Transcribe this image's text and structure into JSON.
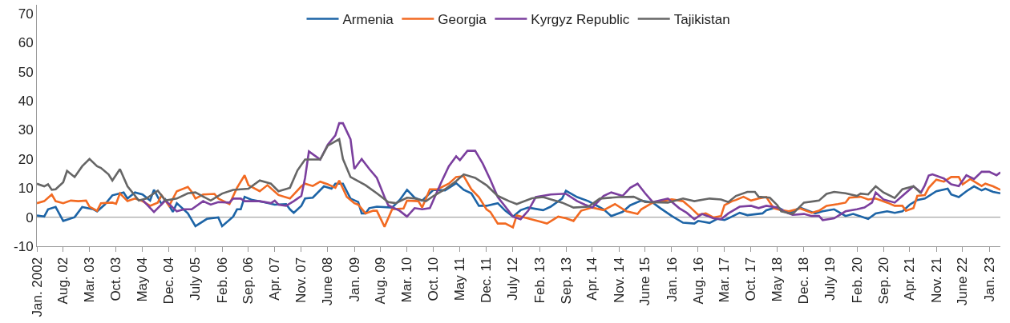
{
  "chart_data": {
    "type": "line",
    "legend": "top",
    "marker": "none",
    "line_style": "solid",
    "grid": false,
    "xlim": [
      "2002-01",
      "2023-04"
    ],
    "xticks": [
      {
        "value": "2002-01",
        "label": "Jan. 2002"
      },
      {
        "value": "2002-08",
        "label": "Aug. 02"
      },
      {
        "value": "2003-03",
        "label": "Mar. 03"
      },
      {
        "value": "2003-10",
        "label": "Oct. 03"
      },
      {
        "value": "2004-05",
        "label": "May 04"
      },
      {
        "value": "2004-12",
        "label": "Dec. 04"
      },
      {
        "value": "2005-07",
        "label": "July 05"
      },
      {
        "value": "2006-02",
        "label": "Feb. 06"
      },
      {
        "value": "2006-09",
        "label": "Sep. 06"
      },
      {
        "value": "2007-04",
        "label": "Apr. 07"
      },
      {
        "value": "2007-11",
        "label": "Nov. 07"
      },
      {
        "value": "2008-06",
        "label": "June 08"
      },
      {
        "value": "2009-01",
        "label": "Jan. 09"
      },
      {
        "value": "2009-08",
        "label": "Aug. 09"
      },
      {
        "value": "2010-03",
        "label": "Mar. 10"
      },
      {
        "value": "2010-10",
        "label": "Oct. 10"
      },
      {
        "value": "2011-05",
        "label": "May 11"
      },
      {
        "value": "2011-12",
        "label": "Dec. 11"
      },
      {
        "value": "2012-07",
        "label": "July 12"
      },
      {
        "value": "2013-02",
        "label": "Feb. 13"
      },
      {
        "value": "2013-09",
        "label": "Sep. 13"
      },
      {
        "value": "2014-04",
        "label": "Apr. 14"
      },
      {
        "value": "2014-11",
        "label": "Nov. 14"
      },
      {
        "value": "2015-06",
        "label": "June 15"
      },
      {
        "value": "2016-01",
        "label": "Jan. 16"
      },
      {
        "value": "2016-08",
        "label": "Aug. 16"
      },
      {
        "value": "2017-03",
        "label": "Mar. 17"
      },
      {
        "value": "2017-10",
        "label": "Oct. 17"
      },
      {
        "value": "2018-05",
        "label": "May 18"
      },
      {
        "value": "2018-12",
        "label": "Dec. 18"
      },
      {
        "value": "2019-07",
        "label": "July 19"
      },
      {
        "value": "2020-02",
        "label": "Feb. 20"
      },
      {
        "value": "2020-09",
        "label": "Sep. 20"
      },
      {
        "value": "2021-04",
        "label": "Apr. 21"
      },
      {
        "value": "2021-11",
        "label": "Nov. 21"
      },
      {
        "value": "2022-06",
        "label": "June 22"
      },
      {
        "value": "2023-01",
        "label": "Jan. 23"
      }
    ],
    "ylim": [
      -10,
      73
    ],
    "yticks": [
      -10,
      0,
      10,
      20,
      30,
      40,
      50,
      60,
      70
    ],
    "ref_lines": [
      {
        "axis": "y",
        "value": 0,
        "color": "#a6a6a6"
      }
    ],
    "series": [
      {
        "name": "Armenia",
        "color": "#1d64a6",
        "x": [
          "2002-01",
          "2002-03",
          "2002-04",
          "2002-06",
          "2002-08",
          "2002-11",
          "2003-01",
          "2003-04",
          "2003-05",
          "2003-07",
          "2003-09",
          "2003-12",
          "2004-01",
          "2004-03",
          "2004-05",
          "2004-07",
          "2004-08",
          "2004-10",
          "2004-11",
          "2005-01",
          "2005-02",
          "2005-05",
          "2005-07",
          "2005-10",
          "2006-01",
          "2006-02",
          "2006-05",
          "2006-06",
          "2006-07",
          "2006-08",
          "2006-10",
          "2007-01",
          "2007-04",
          "2007-07",
          "2007-08",
          "2007-09",
          "2007-11",
          "2007-12",
          "2008-02",
          "2008-05",
          "2008-07",
          "2008-08",
          "2008-10",
          "2008-12",
          "2009-02",
          "2009-03",
          "2009-04",
          "2009-05",
          "2009-07",
          "2009-11",
          "2010-01",
          "2010-03",
          "2010-05",
          "2010-07",
          "2010-10",
          "2011-01",
          "2011-04",
          "2011-06",
          "2011-08",
          "2011-10",
          "2011-12",
          "2012-03",
          "2012-05",
          "2012-07",
          "2012-09",
          "2012-11",
          "2013-03",
          "2013-05",
          "2013-08",
          "2013-09",
          "2013-12",
          "2014-03",
          "2014-05",
          "2014-07",
          "2014-09",
          "2014-12",
          "2015-02",
          "2015-05",
          "2015-08",
          "2015-10",
          "2016-01",
          "2016-04",
          "2016-07",
          "2016-08",
          "2016-11",
          "2017-01",
          "2017-03",
          "2017-04",
          "2017-07",
          "2017-09",
          "2018-01",
          "2018-02",
          "2018-05",
          "2018-08",
          "2018-11",
          "2019-03",
          "2019-05",
          "2019-08",
          "2019-11",
          "2020-01",
          "2020-05",
          "2020-07",
          "2020-10",
          "2020-12",
          "2021-02",
          "2021-04",
          "2021-06",
          "2021-08",
          "2021-11",
          "2022-02",
          "2022-03",
          "2022-05",
          "2022-07",
          "2022-09",
          "2022-11",
          "2022-12",
          "2023-02",
          "2023-04"
        ],
        "values": [
          0.6,
          0.2,
          2.7,
          3.5,
          -1.3,
          0,
          3.5,
          2.7,
          2,
          4.3,
          7.5,
          8.5,
          6.4,
          8.5,
          7.8,
          5.7,
          9.4,
          4.5,
          6.1,
          1.8,
          4.8,
          1.3,
          -3.1,
          -0.6,
          -0.1,
          -3.1,
          0.2,
          2.7,
          2.7,
          7,
          5.9,
          5.2,
          4.3,
          4.5,
          2.7,
          1.5,
          3.9,
          6.4,
          6.7,
          10.6,
          9.8,
          11.5,
          11.5,
          6.4,
          5.2,
          1.3,
          1.3,
          3.1,
          3.6,
          3.3,
          5.9,
          9.4,
          6.7,
          5.7,
          9.4,
          9.2,
          11.7,
          9.4,
          8.2,
          3.9,
          3.9,
          4.8,
          2.2,
          0.2,
          2.4,
          3.3,
          2.4,
          3.6,
          6.4,
          9.1,
          6.9,
          5.5,
          4.1,
          2.7,
          0.4,
          1.8,
          4.1,
          5.7,
          5,
          3.1,
          0.4,
          -1.9,
          -2.2,
          -1.3,
          -2,
          -0.6,
          -1,
          -0.4,
          1.5,
          0.7,
          1.3,
          2.4,
          3.5,
          1.3,
          3.3,
          1.3,
          2,
          2.7,
          0.4,
          1.1,
          -0.6,
          1.3,
          2,
          1.5,
          2,
          4.3,
          5.9,
          6.4,
          8.9,
          9.8,
          7.8,
          6.9,
          8.9,
          10.6,
          9.2,
          9.8,
          8.7,
          8.2
        ]
      },
      {
        "name": "Georgia",
        "color": "#f26a22",
        "x": [
          "2002-01",
          "2002-03",
          "2002-05",
          "2002-06",
          "2002-08",
          "2002-10",
          "2002-12",
          "2003-02",
          "2003-03",
          "2003-05",
          "2003-06",
          "2003-09",
          "2003-10",
          "2003-11",
          "2004-01",
          "2004-03",
          "2004-05",
          "2004-07",
          "2004-09",
          "2004-10",
          "2004-12",
          "2005-02",
          "2005-05",
          "2005-06",
          "2005-07",
          "2005-09",
          "2005-12",
          "2006-01",
          "2006-04",
          "2006-06",
          "2006-08",
          "2006-09",
          "2006-12",
          "2007-02",
          "2007-05",
          "2007-08",
          "2007-11",
          "2007-12",
          "2008-02",
          "2008-04",
          "2008-06",
          "2008-08",
          "2008-09",
          "2008-11",
          "2009-01",
          "2009-02",
          "2009-04",
          "2009-06",
          "2009-07",
          "2009-09",
          "2009-11",
          "2010-02",
          "2010-03",
          "2010-06",
          "2010-07",
          "2010-09",
          "2010-11",
          "2011-02",
          "2011-04",
          "2011-06",
          "2011-08",
          "2011-10",
          "2011-12",
          "2012-01",
          "2012-03",
          "2012-05",
          "2012-07",
          "2012-08",
          "2012-10",
          "2013-02",
          "2013-04",
          "2013-07",
          "2013-09",
          "2013-11",
          "2014-01",
          "2014-04",
          "2014-07",
          "2014-10",
          "2015-01",
          "2015-04",
          "2015-05",
          "2015-08",
          "2016-01",
          "2016-04",
          "2016-06",
          "2016-08",
          "2016-10",
          "2016-12",
          "2017-02",
          "2017-03",
          "2017-05",
          "2017-06",
          "2017-08",
          "2017-10",
          "2017-12",
          "2018-02",
          "2018-04",
          "2018-06",
          "2018-08",
          "2018-11",
          "2019-02",
          "2019-04",
          "2019-06",
          "2019-09",
          "2019-11",
          "2019-12",
          "2020-03",
          "2020-05",
          "2020-07",
          "2020-10",
          "2020-12",
          "2021-02",
          "2021-03",
          "2021-05",
          "2021-06",
          "2021-08",
          "2021-09",
          "2021-11",
          "2022-01",
          "2022-03",
          "2022-05",
          "2022-06",
          "2022-08",
          "2022-11",
          "2022-12",
          "2023-02",
          "2023-04"
        ],
        "values": [
          4.8,
          5.5,
          7.8,
          5.5,
          4.8,
          5.7,
          5.5,
          5.7,
          3.6,
          2.2,
          4.8,
          5,
          4.6,
          8.2,
          5.5,
          6.4,
          5.5,
          3.9,
          5,
          7.5,
          3.9,
          8.9,
          10.4,
          8.7,
          6.4,
          7.8,
          8,
          6.4,
          4.5,
          10.1,
          14.4,
          11,
          8.9,
          11,
          7.6,
          6.4,
          10.6,
          11.5,
          10.7,
          12.2,
          11.3,
          10.1,
          12.6,
          7,
          4.8,
          4.3,
          1.3,
          2.2,
          2.2,
          -3.3,
          2.7,
          3,
          5.7,
          5.5,
          3.3,
          9.6,
          9.6,
          11.5,
          13.8,
          14.1,
          9.6,
          6.9,
          2.7,
          1.8,
          -2.2,
          -2.2,
          -3.5,
          0.6,
          -0.1,
          -1.5,
          -2.2,
          0.2,
          -0.4,
          -1.3,
          2.2,
          3.3,
          2.4,
          4.5,
          2,
          1.1,
          2.7,
          5,
          6.1,
          5.5,
          3.3,
          0.8,
          1.3,
          -0.1,
          0.4,
          4.1,
          5.5,
          5.9,
          7,
          5.7,
          6.4,
          6.9,
          3.1,
          2.4,
          2,
          3,
          1.5,
          2.2,
          3.9,
          4.5,
          5,
          6.7,
          7,
          6.1,
          6.4,
          5,
          3.9,
          3.9,
          2.2,
          3.1,
          7.3,
          7.6,
          10.1,
          12.9,
          12.2,
          13.8,
          13.8,
          11.3,
          13.1,
          10.7,
          11.5,
          10.6,
          9.4
        ]
      },
      {
        "name": "Kyrgyz Republic",
        "color": "#7b3f9e",
        "x": [
          "2004-05",
          "2004-08",
          "2004-11",
          "2004-12",
          "2005-02",
          "2005-04",
          "2005-06",
          "2005-09",
          "2005-11",
          "2006-01",
          "2006-04",
          "2006-05",
          "2006-07",
          "2006-08",
          "2006-12",
          "2007-03",
          "2007-04",
          "2007-05",
          "2007-07",
          "2007-09",
          "2007-11",
          "2007-12",
          "2008-01",
          "2008-04",
          "2008-06",
          "2008-08",
          "2008-09",
          "2008-10",
          "2008-12",
          "2009-01",
          "2009-03",
          "2009-05",
          "2009-07",
          "2009-09",
          "2009-10",
          "2010-01",
          "2010-03",
          "2010-05",
          "2010-07",
          "2010-09",
          "2010-12",
          "2011-02",
          "2011-04",
          "2011-05",
          "2011-07",
          "2011-09",
          "2011-11",
          "2012-01",
          "2012-03",
          "2012-05",
          "2012-07",
          "2012-09",
          "2012-11",
          "2013-01",
          "2013-05",
          "2013-08",
          "2013-09",
          "2013-12",
          "2014-02",
          "2014-04",
          "2014-07",
          "2014-09",
          "2014-12",
          "2015-02",
          "2015-04",
          "2015-06",
          "2015-08",
          "2015-12",
          "2016-03",
          "2016-05",
          "2016-07",
          "2016-09",
          "2016-12",
          "2017-02",
          "2017-04",
          "2017-07",
          "2017-10",
          "2017-12",
          "2018-02",
          "2018-05",
          "2018-07",
          "2018-09",
          "2018-12",
          "2019-02",
          "2019-04",
          "2019-05",
          "2019-08",
          "2019-11",
          "2020-02",
          "2020-04",
          "2020-06",
          "2020-07",
          "2020-09",
          "2020-12",
          "2021-02",
          "2021-05",
          "2021-07",
          "2021-08",
          "2021-09",
          "2021-10",
          "2022-01",
          "2022-03",
          "2022-05",
          "2022-07",
          "2022-09",
          "2022-11",
          "2023-01",
          "2023-03",
          "2023-04"
        ],
        "values": [
          5.9,
          1.8,
          5.7,
          4.5,
          2,
          2.7,
          2.7,
          5.5,
          4.3,
          5.2,
          5,
          6.4,
          6.4,
          5.5,
          5.5,
          4.8,
          5.7,
          4.3,
          3.9,
          5.5,
          7.3,
          13.5,
          22.6,
          19.8,
          24.9,
          28.1,
          32.3,
          32.3,
          26.8,
          16.6,
          20,
          16.6,
          13.5,
          6.9,
          4.1,
          2.2,
          0.2,
          3.1,
          2.7,
          3.1,
          11.9,
          17.5,
          20.9,
          19.6,
          22.8,
          22.8,
          18.4,
          12.9,
          6.9,
          3.6,
          0.2,
          -0.7,
          2.2,
          6.9,
          7.8,
          8,
          8,
          5.5,
          4.3,
          3.3,
          7.3,
          8.5,
          7.3,
          10.1,
          11.5,
          8.2,
          5.2,
          6.4,
          3.1,
          1.5,
          -0.7,
          1.1,
          -0.4,
          -0.7,
          1.3,
          3.6,
          3.9,
          3.1,
          3.9,
          3.3,
          1.8,
          0.8,
          1.1,
          0.4,
          0.4,
          -1,
          -0.4,
          2,
          2.7,
          3.3,
          5,
          8.5,
          6.1,
          5,
          7.3,
          10.6,
          8.5,
          11,
          14.3,
          14.7,
          13.3,
          11.3,
          10.7,
          14.4,
          13.1,
          15.6,
          15.6,
          14.4,
          15.4
        ]
      },
      {
        "name": "Tajikistan",
        "color": "#666666",
        "x": [
          "2002-01",
          "2002-03",
          "2002-04",
          "2002-05",
          "2002-06",
          "2002-08",
          "2002-09",
          "2002-11",
          "2003-01",
          "2003-03",
          "2003-05",
          "2003-06",
          "2003-08",
          "2003-09",
          "2003-11",
          "2004-01",
          "2004-04",
          "2004-06",
          "2004-09",
          "2004-11",
          "2005-02",
          "2005-05",
          "2005-07",
          "2005-11",
          "2006-02",
          "2006-05",
          "2006-09",
          "2006-12",
          "2007-03",
          "2007-05",
          "2007-08",
          "2007-10",
          "2007-12",
          "2008-04",
          "2008-06",
          "2008-09",
          "2008-10",
          "2008-12",
          "2009-04",
          "2009-07",
          "2009-10",
          "2009-12",
          "2010-03",
          "2010-05",
          "2010-08",
          "2010-10",
          "2011-01",
          "2011-04",
          "2011-06",
          "2011-09",
          "2011-12",
          "2012-03",
          "2012-06",
          "2012-08",
          "2012-12",
          "2013-03",
          "2013-08",
          "2013-11",
          "2014-03",
          "2014-06",
          "2014-11",
          "2015-03",
          "2015-06",
          "2015-12",
          "2016-04",
          "2016-07",
          "2016-11",
          "2017-02",
          "2017-04",
          "2017-06",
          "2017-09",
          "2017-11",
          "2017-12",
          "2018-03",
          "2018-05",
          "2018-06",
          "2018-09",
          "2018-12",
          "2019-04",
          "2019-06",
          "2019-08",
          "2019-11",
          "2020-02",
          "2020-03",
          "2020-05",
          "2020-07",
          "2020-09",
          "2020-12",
          "2021-02",
          "2021-05",
          "2021-07"
        ],
        "values": [
          11.5,
          10.6,
          11.3,
          9.4,
          9.6,
          12,
          15.9,
          13.8,
          17.5,
          20,
          17.5,
          16.9,
          14.7,
          12.6,
          16.5,
          10.6,
          5.7,
          6.4,
          9.1,
          5.7,
          6.4,
          8.2,
          8.5,
          5.7,
          8.1,
          9.4,
          9.8,
          12.6,
          11.5,
          8.9,
          10.1,
          16.1,
          19.8,
          19.8,
          24.6,
          26.8,
          20,
          13.8,
          11,
          8.2,
          5.2,
          4.8,
          6.7,
          6.4,
          5.5,
          7.3,
          9.6,
          12.4,
          14.7,
          13.5,
          11,
          7.3,
          5.5,
          4.5,
          6.5,
          6.9,
          5,
          3.3,
          3.6,
          6.4,
          6.9,
          7,
          5.2,
          5,
          6.4,
          5.5,
          6.4,
          6.1,
          5.2,
          7.3,
          8.7,
          8.7,
          7,
          6.7,
          4.1,
          2,
          1.1,
          5,
          5.7,
          8,
          8.7,
          8.2,
          7.3,
          8.1,
          7.8,
          10.6,
          8.5,
          6.6,
          9.6,
          10.6,
          8.2
        ]
      }
    ]
  }
}
